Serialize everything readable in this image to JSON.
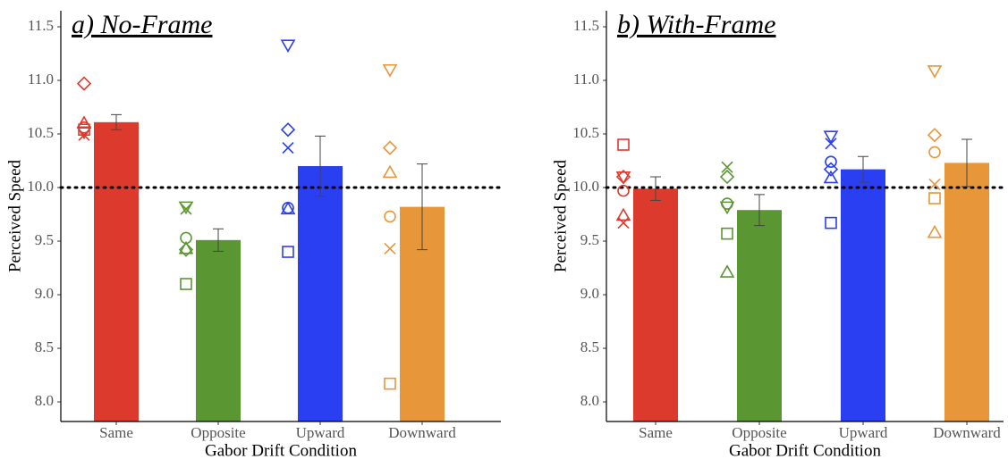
{
  "chart_data": [
    {
      "type": "bar",
      "title": "a) No-Frame",
      "x_label": "Gabor Drift Condition",
      "y_label": "Perceived Speed",
      "categories": [
        "Same",
        "Opposite",
        "Upward",
        "Downward"
      ],
      "values": [
        10.61,
        9.51,
        10.2,
        9.82
      ],
      "errors": [
        0.07,
        0.105,
        0.28,
        0.4
      ],
      "colors": [
        "#dd3a2e",
        "#5a9632",
        "#2a3ef2",
        "#e8963a"
      ],
      "ylim": [
        7.817,
        11.65
      ],
      "yticks": [
        {
          "value": 8,
          "label": "8.0"
        },
        8.5,
        {
          "value": 9,
          "label": "9.0"
        },
        9.5,
        {
          "value": 10,
          "label": "10.0"
        },
        10.5,
        {
          "value": 11,
          "label": "11.0"
        },
        11.5
      ],
      "reference_line": 10,
      "points": [
        {
          "shape": "diamond",
          "values": [
            10.97,
            9.42,
            10.54,
            10.37
          ]
        },
        {
          "shape": "triangle",
          "values": [
            10.6,
            9.43,
            9.8,
            10.14
          ]
        },
        {
          "shape": "inverted-triangle",
          "values": [
            10.52,
            9.82,
            11.33,
            11.1
          ]
        },
        {
          "shape": "x",
          "values": [
            10.49,
            9.8,
            10.37,
            9.43
          ]
        },
        {
          "shape": "circle",
          "values": [
            10.56,
            9.53,
            9.81,
            9.73
          ]
        },
        {
          "shape": "square",
          "values": [
            10.54,
            9.1,
            9.4,
            8.17
          ]
        }
      ]
    },
    {
      "type": "bar",
      "title": "b) With-Frame",
      "x_label": "Gabor Drift Condition",
      "y_label": "Perceived Speed",
      "categories": [
        "Same",
        "Opposite",
        "Upward",
        "Downward"
      ],
      "values": [
        9.99,
        9.79,
        10.17,
        10.23
      ],
      "errors": [
        0.11,
        0.145,
        0.12,
        0.22
      ],
      "colors": [
        "#dd3a2e",
        "#5a9632",
        "#2a3ef2",
        "#e8963a"
      ],
      "ylim": [
        7.817,
        11.65
      ],
      "yticks": [
        {
          "value": 8,
          "label": "8.0"
        },
        8.5,
        {
          "value": 9,
          "label": "9.0"
        },
        9.5,
        {
          "value": 10,
          "label": "10.0"
        },
        10.5,
        {
          "value": 11,
          "label": "11.0"
        },
        11.5
      ],
      "reference_line": 10,
      "points": [
        {
          "shape": "diamond",
          "values": [
            10.1,
            10.1,
            10.17,
            10.49
          ]
        },
        {
          "shape": "triangle",
          "values": [
            9.74,
            9.21,
            10.09,
            9.58
          ]
        },
        {
          "shape": "inverted-triangle",
          "values": [
            10.1,
            9.82,
            10.48,
            11.09
          ]
        },
        {
          "shape": "x",
          "values": [
            9.67,
            10.19,
            10.41,
            10.03
          ]
        },
        {
          "shape": "circle",
          "values": [
            9.97,
            9.85,
            10.24,
            10.33
          ]
        },
        {
          "shape": "square",
          "values": [
            10.4,
            9.57,
            9.67,
            9.9
          ]
        }
      ]
    }
  ]
}
